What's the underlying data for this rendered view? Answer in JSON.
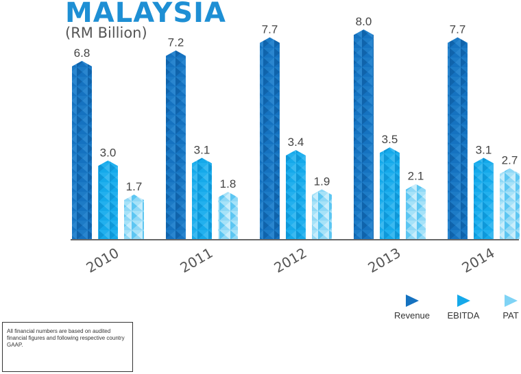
{
  "header": {
    "title": "MALAYSIA",
    "subtitle": "(RM Billion)"
  },
  "note": {
    "text": "All financial numbers are based on audited financial figures and following respective country GAAP."
  },
  "chart_data": {
    "type": "bar",
    "categories": [
      "2010",
      "2011",
      "2012",
      "2013",
      "2014"
    ],
    "series": [
      {
        "name": "Revenue",
        "values": [
          6.8,
          7.2,
          7.7,
          8.0,
          7.7
        ],
        "color": "#1572c0"
      },
      {
        "name": "EBITDA",
        "values": [
          3.0,
          3.1,
          3.4,
          3.5,
          3.1
        ],
        "color": "#15a9ea"
      },
      {
        "name": "PAT",
        "values": [
          1.7,
          1.8,
          1.9,
          2.1,
          2.7
        ],
        "color": "#7fd3f5"
      }
    ],
    "value_labels": [
      "6.8",
      "7.2",
      "7.7",
      "8.0",
      "7.7",
      "3.0",
      "3.1",
      "3.4",
      "3.5",
      "3.1",
      "1.7",
      "1.8",
      "1.9",
      "2.1",
      "2.7"
    ],
    "ylim": [
      0,
      8.0
    ],
    "legend_position": "bottom-right",
    "grid": false
  }
}
